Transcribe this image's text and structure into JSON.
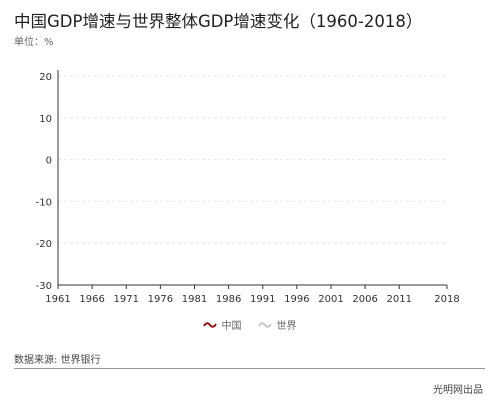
{
  "title": "中国GDP增速与世界整体GDP增速变化（1960-2018）",
  "unit_label": "单位：%",
  "source": "数据来源: 世界银行",
  "publisher": "光明网出品",
  "colors": {
    "china": "#8b1a1a",
    "world": "#c8c8c8",
    "axis": "#333333",
    "grid": "#e6e6e6"
  },
  "chart_data": {
    "type": "line",
    "title": "中国GDP增速与世界整体GDP增速变化（1960-2018）",
    "xlabel": "",
    "ylabel": "单位：%",
    "xlim": [
      1961,
      2018
    ],
    "ylim": [
      -30,
      20
    ],
    "yticks": [
      20,
      10,
      0,
      -10,
      -20,
      -30
    ],
    "xticks": [
      1961,
      1966,
      1971,
      1976,
      1981,
      1986,
      1991,
      1996,
      2001,
      2006,
      2011,
      2018
    ],
    "grid": true,
    "legend_position": "bottom",
    "series": [
      {
        "name": "中国",
        "values": []
      },
      {
        "name": "世界",
        "values": []
      }
    ]
  }
}
